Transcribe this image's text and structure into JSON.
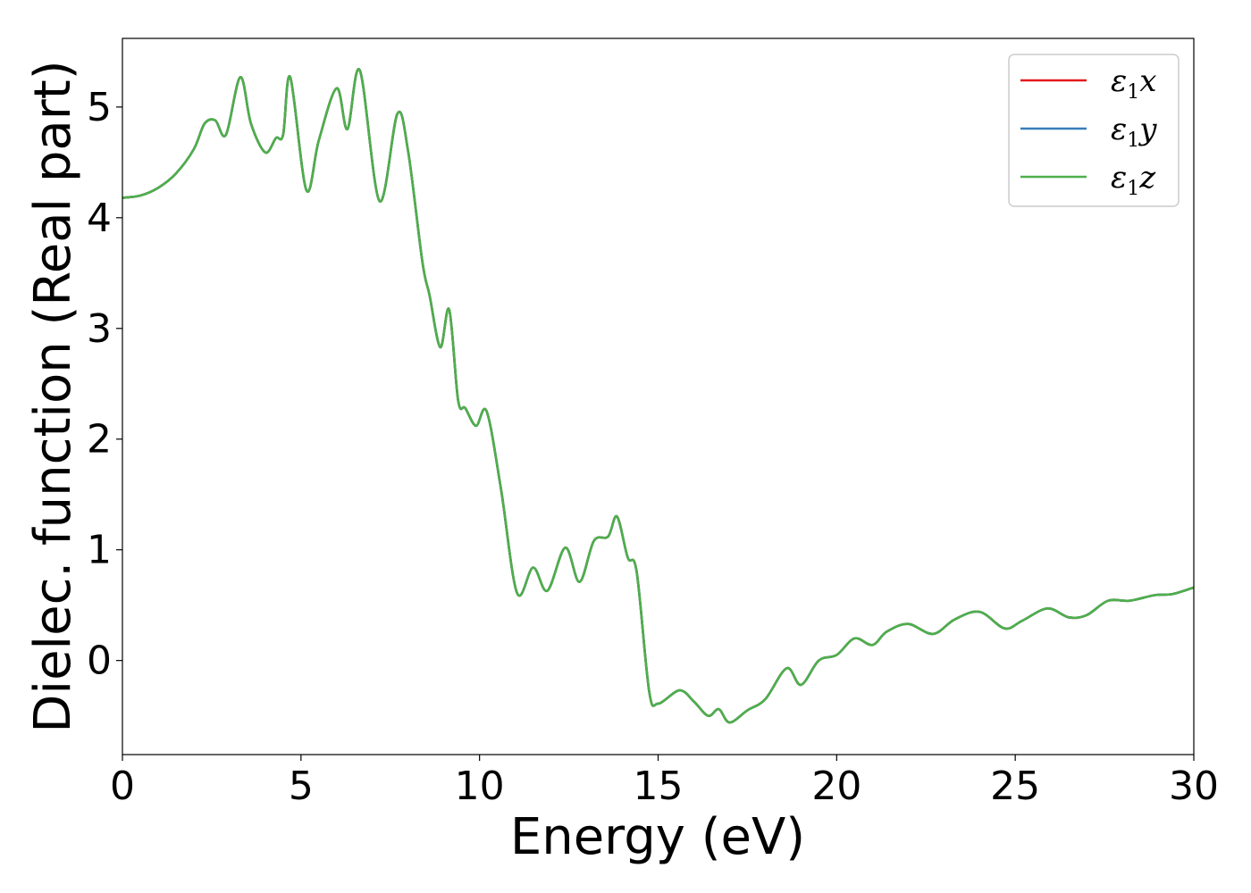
{
  "chart_data": {
    "type": "line",
    "xlabel": "Energy (eV)",
    "ylabel": "Dielec. function (Real part)",
    "xlim": [
      0,
      30
    ],
    "ylim": [
      -0.85,
      5.62
    ],
    "x_ticks": [
      "0",
      "5",
      "10",
      "15",
      "20",
      "25",
      "30"
    ],
    "y_ticks": [
      "0",
      "1",
      "2",
      "3",
      "4",
      "5"
    ],
    "grid": false,
    "legend_position": "top-right",
    "x": [
      0,
      0.5,
      1.0,
      1.5,
      2.0,
      2.3,
      2.6,
      2.9,
      3.3,
      3.6,
      4.0,
      4.3,
      4.5,
      4.7,
      5.15,
      5.5,
      6.0,
      6.3,
      6.65,
      7.2,
      7.7,
      8.0,
      8.4,
      8.6,
      8.9,
      9.15,
      9.4,
      9.6,
      9.9,
      10.2,
      10.6,
      11.05,
      11.5,
      11.9,
      12.4,
      12.8,
      13.2,
      13.6,
      13.85,
      14.15,
      14.4,
      14.75,
      15.0,
      15.6,
      16.0,
      16.4,
      16.7,
      17.0,
      17.5,
      18.0,
      18.6,
      19.0,
      19.5,
      20.0,
      20.5,
      21.0,
      21.4,
      22.0,
      22.7,
      23.3,
      24.0,
      24.7,
      25.2,
      25.9,
      26.5,
      27.0,
      27.6,
      28.2,
      28.9,
      29.4,
      30.0
    ],
    "series": [
      {
        "name": "ε1x",
        "color": "#e41a1c",
        "values": [
          4.18,
          4.2,
          4.27,
          4.4,
          4.62,
          4.85,
          4.88,
          4.75,
          5.27,
          4.85,
          4.59,
          4.72,
          4.75,
          5.27,
          4.25,
          4.7,
          5.17,
          4.8,
          5.33,
          4.15,
          4.94,
          4.6,
          3.6,
          3.3,
          2.83,
          3.17,
          2.35,
          2.28,
          2.12,
          2.25,
          1.55,
          0.61,
          0.84,
          0.63,
          1.02,
          0.71,
          1.08,
          1.12,
          1.3,
          0.93,
          0.8,
          -0.28,
          -0.39,
          -0.27,
          -0.37,
          -0.5,
          -0.44,
          -0.56,
          -0.45,
          -0.35,
          -0.07,
          -0.22,
          0.0,
          0.05,
          0.2,
          0.14,
          0.26,
          0.33,
          0.24,
          0.37,
          0.44,
          0.29,
          0.36,
          0.47,
          0.39,
          0.41,
          0.54,
          0.54,
          0.59,
          0.6,
          0.66
        ]
      },
      {
        "name": "ε1y",
        "color": "#377eb8",
        "values": [
          4.18,
          4.2,
          4.27,
          4.4,
          4.62,
          4.85,
          4.88,
          4.75,
          5.27,
          4.85,
          4.59,
          4.72,
          4.75,
          5.27,
          4.25,
          4.7,
          5.17,
          4.8,
          5.33,
          4.15,
          4.94,
          4.6,
          3.6,
          3.3,
          2.83,
          3.17,
          2.35,
          2.28,
          2.12,
          2.25,
          1.55,
          0.61,
          0.84,
          0.63,
          1.02,
          0.71,
          1.08,
          1.12,
          1.3,
          0.93,
          0.8,
          -0.28,
          -0.39,
          -0.27,
          -0.37,
          -0.5,
          -0.44,
          -0.56,
          -0.45,
          -0.35,
          -0.07,
          -0.22,
          0.0,
          0.05,
          0.2,
          0.14,
          0.26,
          0.33,
          0.24,
          0.37,
          0.44,
          0.29,
          0.36,
          0.47,
          0.39,
          0.41,
          0.54,
          0.54,
          0.59,
          0.6,
          0.66
        ]
      },
      {
        "name": "ε1z",
        "color": "#4daf4a",
        "values": [
          4.18,
          4.2,
          4.27,
          4.4,
          4.62,
          4.85,
          4.88,
          4.75,
          5.27,
          4.85,
          4.59,
          4.72,
          4.75,
          5.27,
          4.25,
          4.7,
          5.17,
          4.8,
          5.33,
          4.15,
          4.94,
          4.6,
          3.6,
          3.3,
          2.83,
          3.17,
          2.35,
          2.28,
          2.12,
          2.25,
          1.55,
          0.61,
          0.84,
          0.63,
          1.02,
          0.71,
          1.08,
          1.12,
          1.3,
          0.93,
          0.8,
          -0.28,
          -0.39,
          -0.27,
          -0.37,
          -0.5,
          -0.44,
          -0.56,
          -0.45,
          -0.35,
          -0.07,
          -0.22,
          0.0,
          0.05,
          0.2,
          0.14,
          0.26,
          0.33,
          0.24,
          0.37,
          0.44,
          0.29,
          0.36,
          0.47,
          0.39,
          0.41,
          0.54,
          0.54,
          0.59,
          0.6,
          0.66
        ]
      }
    ]
  }
}
